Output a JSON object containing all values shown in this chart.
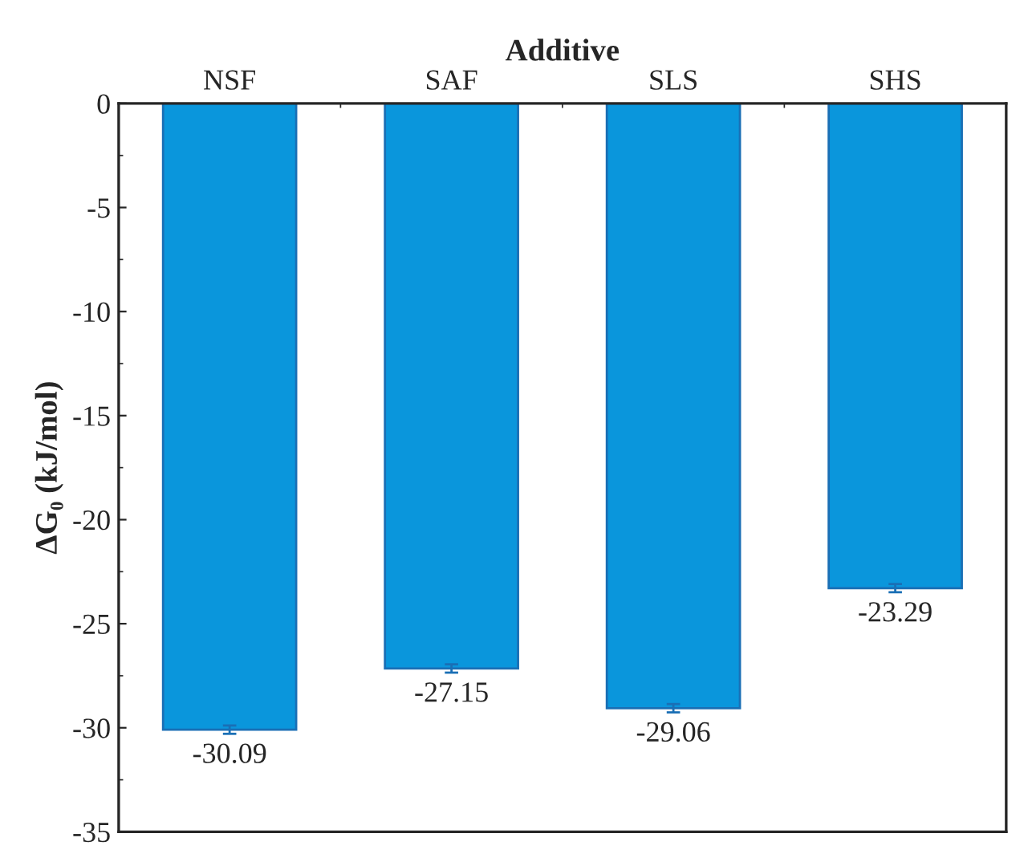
{
  "chart_data": {
    "type": "bar",
    "xlabel": "Additive",
    "ylabel": "ΔG₀ (kJ/mol)",
    "categories": [
      "NSF",
      "SAF",
      "SLS",
      "SHS"
    ],
    "values": [
      -30.09,
      -27.15,
      -29.06,
      -23.29
    ],
    "errors": [
      0.2,
      0.2,
      0.2,
      0.2
    ],
    "color": "#0a96dc",
    "data_labels": true,
    "ylim": [
      -35,
      0
    ],
    "yticks": [
      -35,
      -30,
      -25,
      -20,
      -15,
      -10,
      -5,
      0
    ],
    "grid": false,
    "legend": false
  }
}
